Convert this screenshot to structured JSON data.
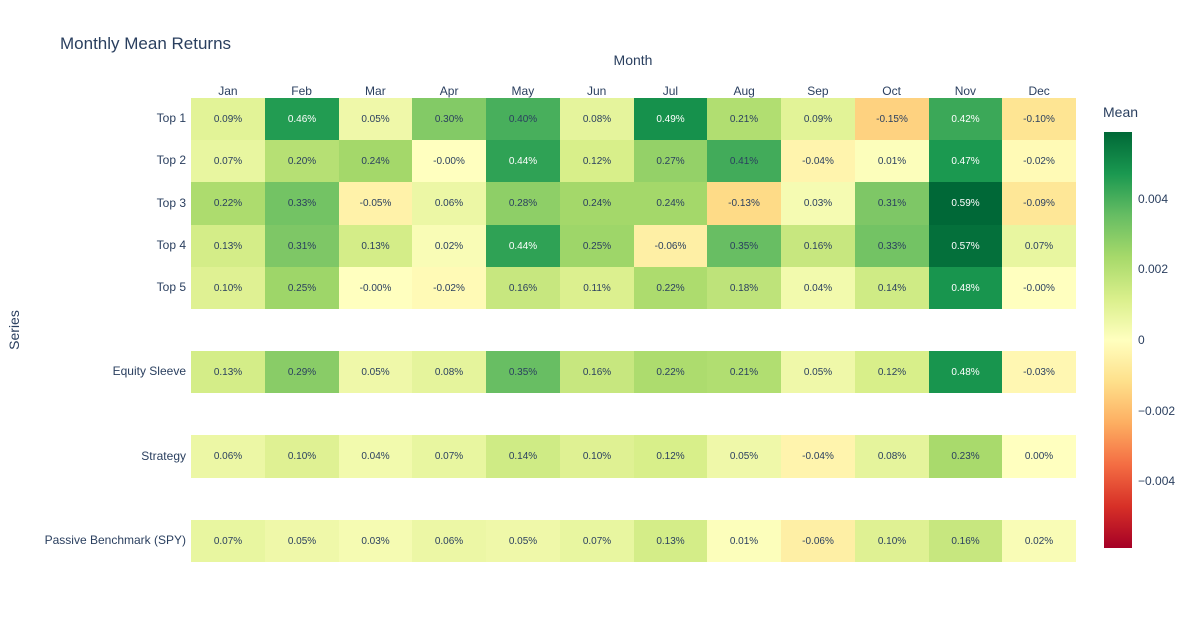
{
  "title": "Monthly Mean Returns",
  "xaxis_title": "Month",
  "yaxis_title": "Series",
  "colors": {
    "background": "#ffffff",
    "text": "#2a3f5f",
    "cell_text_light": "#ffffff"
  },
  "colorbar": {
    "title": "Mean",
    "zmax": 0.0059,
    "zmin": -0.0059,
    "ticks": [
      {
        "label": "0.004",
        "value": 0.004
      },
      {
        "label": "0.002",
        "value": 0.002
      },
      {
        "label": "0",
        "value": 0
      },
      {
        "label": "−0.002",
        "value": -0.002
      },
      {
        "label": "−0.004",
        "value": -0.004
      }
    ]
  },
  "chart_data": {
    "type": "heatmap",
    "title": "Monthly Mean Returns",
    "xlabel": "Month",
    "ylabel": "Series",
    "categories": [
      "Jan",
      "Feb",
      "Mar",
      "Apr",
      "May",
      "Jun",
      "Jul",
      "Aug",
      "Sep",
      "Oct",
      "Nov",
      "Dec"
    ],
    "value_unit": "percent",
    "zmax_abs_percent": 0.59,
    "colorscale_name": "RdYlGn",
    "colorscale": [
      [
        0.0,
        "#a50026"
      ],
      [
        0.1,
        "#d73027"
      ],
      [
        0.2,
        "#f46d43"
      ],
      [
        0.3,
        "#fdae61"
      ],
      [
        0.4,
        "#fee08b"
      ],
      [
        0.5,
        "#ffffbf"
      ],
      [
        0.6,
        "#d9ef8b"
      ],
      [
        0.7,
        "#a6d96a"
      ],
      [
        0.8,
        "#66bd63"
      ],
      [
        0.9,
        "#1a9850"
      ],
      [
        1.0,
        "#006837"
      ]
    ],
    "rows": [
      {
        "name": "Top 1",
        "slot": 0,
        "values": [
          0.09,
          0.46,
          0.05,
          0.3,
          0.4,
          0.08,
          0.49,
          0.21,
          0.09,
          -0.15,
          0.42,
          -0.1
        ],
        "labels": [
          "0.09%",
          "0.46%",
          "0.05%",
          "0.30%",
          "0.40%",
          "0.08%",
          "0.49%",
          "0.21%",
          "0.09%",
          "-0.15%",
          "0.42%",
          "-0.10%"
        ]
      },
      {
        "name": "Top 2",
        "slot": 1,
        "values": [
          0.07,
          0.2,
          0.24,
          -0.0,
          0.44,
          0.12,
          0.27,
          0.41,
          -0.04,
          0.01,
          0.47,
          -0.02
        ],
        "labels": [
          "0.07%",
          "0.20%",
          "0.24%",
          "-0.00%",
          "0.44%",
          "0.12%",
          "0.27%",
          "0.41%",
          "-0.04%",
          "0.01%",
          "0.47%",
          "-0.02%"
        ]
      },
      {
        "name": "Top 3",
        "slot": 2,
        "values": [
          0.22,
          0.33,
          -0.05,
          0.06,
          0.28,
          0.24,
          0.24,
          -0.13,
          0.03,
          0.31,
          0.59,
          -0.09
        ],
        "labels": [
          "0.22%",
          "0.33%",
          "-0.05%",
          "0.06%",
          "0.28%",
          "0.24%",
          "0.24%",
          "-0.13%",
          "0.03%",
          "0.31%",
          "0.59%",
          "-0.09%"
        ]
      },
      {
        "name": "Top 4",
        "slot": 3,
        "values": [
          0.13,
          0.31,
          0.13,
          0.02,
          0.44,
          0.25,
          -0.06,
          0.35,
          0.16,
          0.33,
          0.57,
          0.07
        ],
        "labels": [
          "0.13%",
          "0.31%",
          "0.13%",
          "0.02%",
          "0.44%",
          "0.25%",
          "-0.06%",
          "0.35%",
          "0.16%",
          "0.33%",
          "0.57%",
          "0.07%"
        ]
      },
      {
        "name": "Top 5",
        "slot": 4,
        "values": [
          0.1,
          0.25,
          -0.0,
          -0.02,
          0.16,
          0.11,
          0.22,
          0.18,
          0.04,
          0.14,
          0.48,
          -0.0
        ],
        "labels": [
          "0.10%",
          "0.25%",
          "-0.00%",
          "-0.02%",
          "0.16%",
          "0.11%",
          "0.22%",
          "0.18%",
          "0.04%",
          "0.14%",
          "0.48%",
          "-0.00%"
        ]
      },
      {
        "name": "Equity Sleeve",
        "slot": 6,
        "values": [
          0.13,
          0.29,
          0.05,
          0.08,
          0.35,
          0.16,
          0.22,
          0.21,
          0.05,
          0.12,
          0.48,
          -0.03
        ],
        "labels": [
          "0.13%",
          "0.29%",
          "0.05%",
          "0.08%",
          "0.35%",
          "0.16%",
          "0.22%",
          "0.21%",
          "0.05%",
          "0.12%",
          "0.48%",
          "-0.03%"
        ]
      },
      {
        "name": "Strategy",
        "slot": 8,
        "values": [
          0.06,
          0.1,
          0.04,
          0.07,
          0.14,
          0.1,
          0.12,
          0.05,
          -0.04,
          0.08,
          0.23,
          0.0
        ],
        "labels": [
          "0.06%",
          "0.10%",
          "0.04%",
          "0.07%",
          "0.14%",
          "0.10%",
          "0.12%",
          "0.05%",
          "-0.04%",
          "0.08%",
          "0.23%",
          "0.00%"
        ]
      },
      {
        "name": "Passive Benchmark (SPY)",
        "slot": 10,
        "values": [
          0.07,
          0.05,
          0.03,
          0.06,
          0.05,
          0.07,
          0.13,
          0.01,
          -0.06,
          0.1,
          0.16,
          0.02
        ],
        "labels": [
          "0.07%",
          "0.05%",
          "0.03%",
          "0.06%",
          "0.05%",
          "0.07%",
          "0.13%",
          "0.01%",
          "-0.06%",
          "0.10%",
          "0.16%",
          "0.02%"
        ]
      }
    ]
  }
}
